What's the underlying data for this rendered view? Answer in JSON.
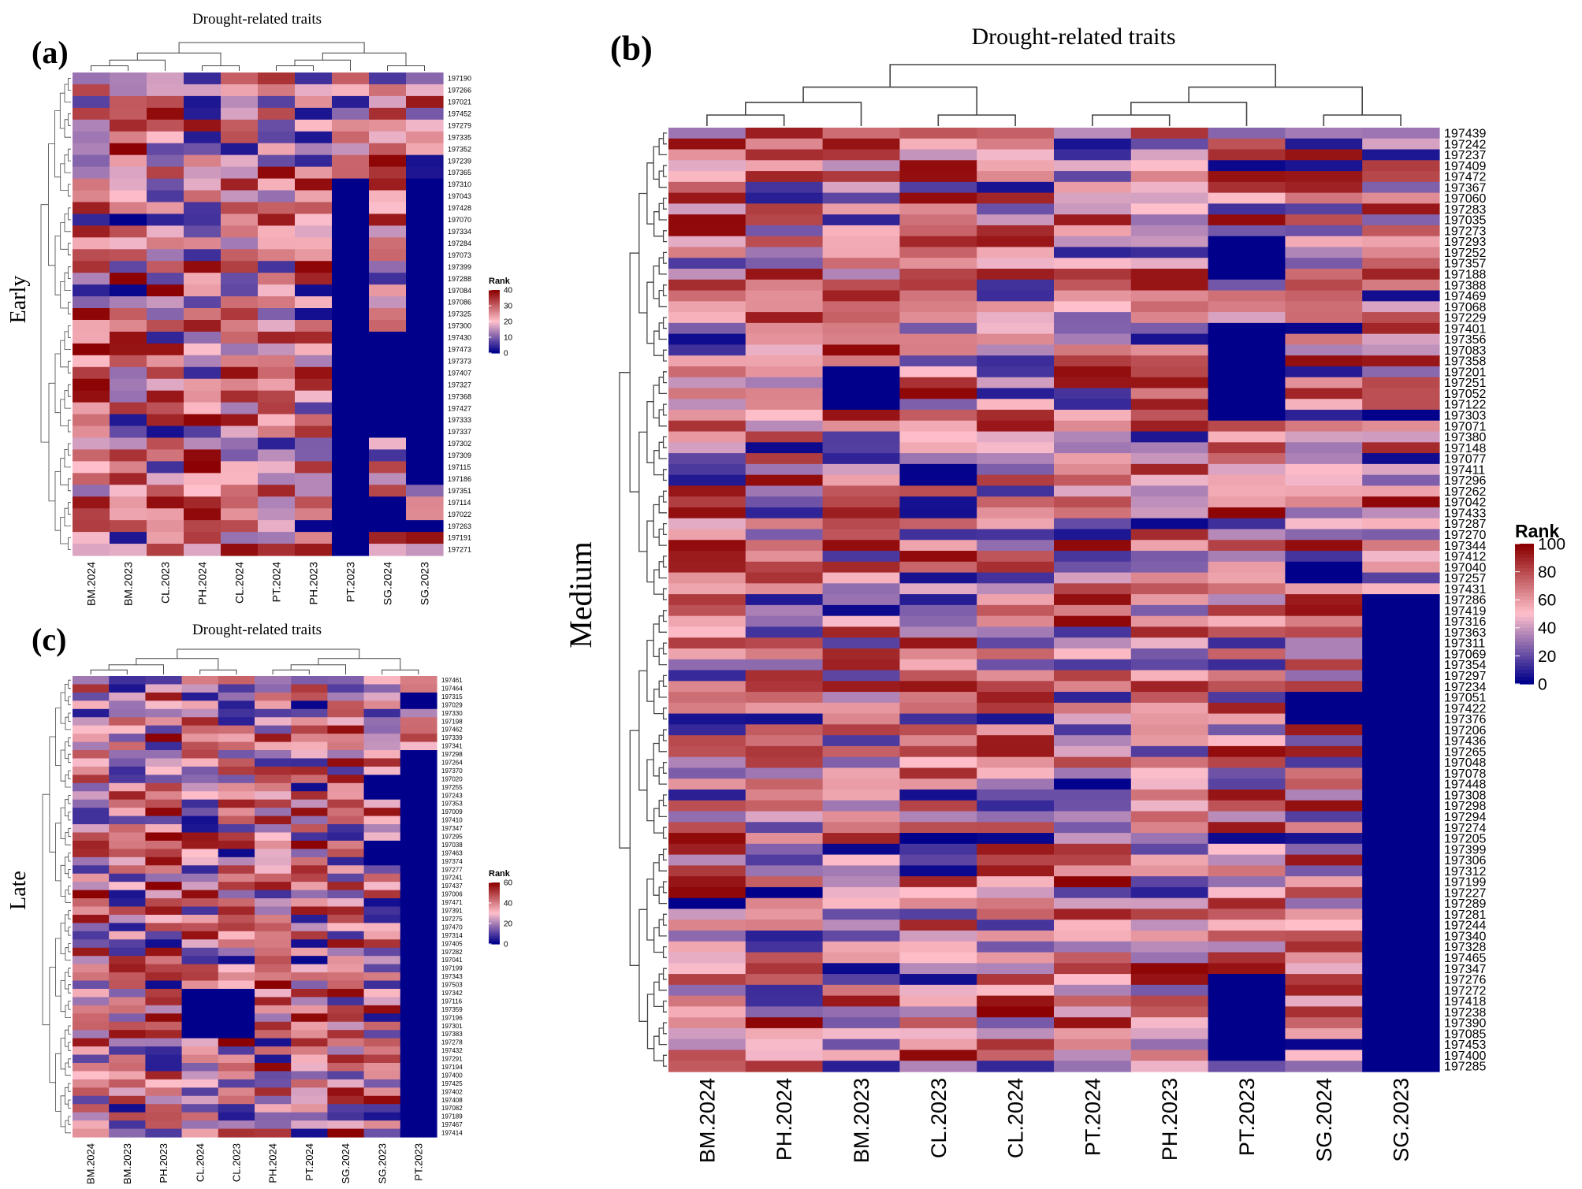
{
  "figure": {
    "colors": {
      "low": "#00008B",
      "mid": "#FFC0CB",
      "high": "#8B0000",
      "tree": "#444444"
    }
  },
  "chart_data": [
    {
      "type": "heatmap",
      "panel": "(a)",
      "title": "Drought-related traits",
      "stage": "Early",
      "columns": [
        "BM.2024",
        "BM.2023",
        "CL.2023",
        "PH.2024",
        "CL.2024",
        "PT.2024",
        "PH.2023",
        "PT.2023",
        "SG.2024",
        "SG.2023"
      ],
      "rows": [
        "197190",
        "197266",
        "197021",
        "197452",
        "197279",
        "197335",
        "197352",
        "197239",
        "197365",
        "197310",
        "197043",
        "197428",
        "197070",
        "197334",
        "197284",
        "197073",
        "197399",
        "197288",
        "197084",
        "197086",
        "197325",
        "197300",
        "197430",
        "197473",
        "197373",
        "197407",
        "197327",
        "197368",
        "197427",
        "197333",
        "197337",
        "197302",
        "197309",
        "197115",
        "197186",
        "197351",
        "197114",
        "197022",
        "197263",
        "197191",
        "197271"
      ],
      "legend": {
        "title": "Rank",
        "min": 0,
        "max": 40,
        "ticks": [
          0,
          10,
          20,
          30,
          40
        ]
      },
      "values_note": "Rank values 0–40; blocks of 0 in the PT.2023, SG.2024 and SG.2023 columns"
    },
    {
      "type": "heatmap",
      "panel": "(b)",
      "title": "Drought-related traits",
      "stage": "Medium",
      "columns": [
        "BM.2024",
        "PH.2024",
        "BM.2023",
        "CL.2023",
        "CL.2024",
        "PT.2024",
        "PH.2023",
        "PT.2023",
        "SG.2024",
        "SG.2023"
      ],
      "rows": [
        "197439",
        "197242",
        "197237",
        "197409",
        "197472",
        "197367",
        "197060",
        "197283",
        "197035",
        "197273",
        "197293",
        "197252",
        "197357",
        "197188",
        "197388",
        "197469",
        "197068",
        "197229",
        "197401",
        "197356",
        "197083",
        "197358",
        "197201",
        "197251",
        "197052",
        "197122",
        "197303",
        "197071",
        "197380",
        "197148",
        "197077",
        "197411",
        "197296",
        "197262",
        "197042",
        "197433",
        "197287",
        "197270",
        "197344",
        "197412",
        "197040",
        "197257",
        "197431",
        "197286",
        "197419",
        "197316",
        "197363",
        "197311",
        "197069",
        "197354",
        "197297",
        "197234",
        "197051",
        "197422",
        "197376",
        "197206",
        "197436",
        "197265",
        "197048",
        "197078",
        "197448",
        "197308",
        "197298",
        "197294",
        "197274",
        "197205",
        "197399",
        "197306",
        "197312",
        "197199",
        "197227",
        "197289",
        "197281",
        "197244",
        "197340",
        "197328",
        "197465",
        "197347",
        "197276",
        "197272",
        "197418",
        "197238",
        "197390",
        "197085",
        "197453",
        "197400",
        "197285"
      ],
      "legend": {
        "title": "Rank",
        "min": 0,
        "max": 100,
        "ticks": [
          0,
          20,
          40,
          60,
          80,
          100
        ]
      },
      "values_note": "Rank values 0–100; SG.2023 has a long block of 0 in the lower half"
    },
    {
      "type": "heatmap",
      "panel": "(c)",
      "title": "Drought-related traits",
      "stage": "Late",
      "columns": [
        "BM.2024",
        "BM.2023",
        "PH.2023",
        "CL.2024",
        "CL.2023",
        "PH.2024",
        "PT.2024",
        "SG.2024",
        "SG.2023",
        "PT.2023"
      ],
      "rows": [
        "197461",
        "197464",
        "197315",
        "197029",
        "197330",
        "197198",
        "197462",
        "197339",
        "197341",
        "197298",
        "197264",
        "197370",
        "197020",
        "197255",
        "197243",
        "197353",
        "197009",
        "197410",
        "197347",
        "197295",
        "197038",
        "197463",
        "197374",
        "197277",
        "197241",
        "197437",
        "197006",
        "197471",
        "197391",
        "197275",
        "197470",
        "197314",
        "197405",
        "197282",
        "197041",
        "197199",
        "197343",
        "197503",
        "197342",
        "197116",
        "197359",
        "197196",
        "197301",
        "197383",
        "197278",
        "197432",
        "197291",
        "197194",
        "197400",
        "197425",
        "197402",
        "197408",
        "197082",
        "197189",
        "197467",
        "197414"
      ],
      "legend": {
        "title": "Rank",
        "min": 0,
        "max": 60,
        "ticks": [
          0,
          20,
          40,
          60
        ]
      },
      "values_note": "Rank values 0–60; PT.2023 is mostly 0 below the top rows"
    }
  ]
}
